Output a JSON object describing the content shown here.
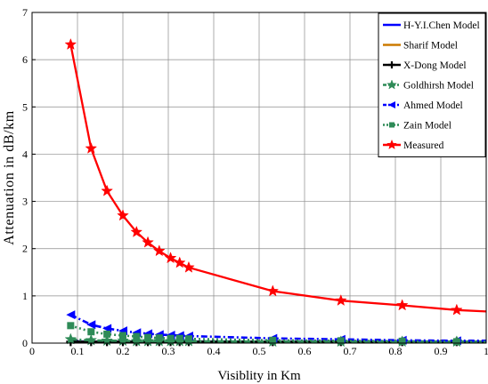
{
  "chart_data": {
    "type": "line",
    "xlabel": "Visiblity in Km",
    "ylabel": "Attenuation in dB/km",
    "xlim": [
      0,
      1
    ],
    "ylim": [
      0,
      7
    ],
    "xticks": [
      "0",
      "0.1",
      "0.2",
      "0.3",
      "0.4",
      "0.5",
      "0.6",
      "0.7",
      "0.8",
      "0.9",
      "1"
    ],
    "yticks": [
      "0",
      "1",
      "2",
      "3",
      "4",
      "5",
      "6",
      "7"
    ],
    "grid": true,
    "legend_position": "top-right",
    "series": [
      {
        "name": "H-Y.I.Chen Model",
        "color": "#0000ff",
        "line_style": "solid",
        "marker": "none",
        "x": [
          0.085,
          0.13,
          0.165,
          0.2,
          0.23,
          0.255,
          0.28,
          0.305,
          0.325,
          0.345,
          0.53,
          0.68,
          0.815,
          0.935,
          1.0
        ],
        "y": [
          0.04,
          0.03,
          0.03,
          0.03,
          0.03,
          0.03,
          0.03,
          0.03,
          0.03,
          0.03,
          0.03,
          0.03,
          0.03,
          0.03,
          0.03
        ]
      },
      {
        "name": "Sharif Model",
        "color": "#cc7a00",
        "line_style": "solid",
        "marker": "none",
        "x": [
          0.085,
          0.13,
          0.165,
          0.2,
          0.23,
          0.255,
          0.28,
          0.305,
          0.325,
          0.345,
          0.53,
          0.68,
          0.815,
          0.935,
          1.0
        ],
        "y": [
          0.02,
          0.02,
          0.02,
          0.02,
          0.02,
          0.02,
          0.02,
          0.02,
          0.02,
          0.02,
          0.02,
          0.02,
          0.02,
          0.02,
          0.02
        ]
      },
      {
        "name": "X-Dong Model",
        "color": "#000000",
        "line_style": "solid",
        "marker": "plus",
        "x": [
          0.085,
          0.13,
          0.165,
          0.2,
          0.23,
          0.255,
          0.28,
          0.305,
          0.325,
          0.345,
          0.53,
          0.68,
          0.815,
          0.935,
          1.0
        ],
        "y": [
          0.03,
          0.03,
          0.03,
          0.03,
          0.03,
          0.03,
          0.03,
          0.03,
          0.03,
          0.03,
          0.03,
          0.03,
          0.03,
          0.03,
          0.03
        ]
      },
      {
        "name": "Goldhirsh Model",
        "color": "#2e8b57",
        "line_style": "dashdot",
        "marker": "star",
        "x": [
          0.085,
          0.13,
          0.165,
          0.2,
          0.23,
          0.255,
          0.28,
          0.305,
          0.325,
          0.345,
          0.53,
          0.68,
          0.815,
          0.935,
          1.0
        ],
        "y": [
          0.08,
          0.06,
          0.05,
          0.05,
          0.04,
          0.04,
          0.04,
          0.04,
          0.04,
          0.04,
          0.03,
          0.03,
          0.03,
          0.03,
          0.03
        ]
      },
      {
        "name": "Ahmed Model",
        "color": "#0000ff",
        "line_style": "dashdot",
        "marker": "triangle-left",
        "x": [
          0.085,
          0.13,
          0.165,
          0.2,
          0.23,
          0.255,
          0.28,
          0.305,
          0.325,
          0.345,
          0.53,
          0.68,
          0.815,
          0.935,
          1.0
        ],
        "y": [
          0.6,
          0.39,
          0.31,
          0.26,
          0.22,
          0.2,
          0.18,
          0.17,
          0.16,
          0.15,
          0.1,
          0.08,
          0.06,
          0.05,
          0.05
        ]
      },
      {
        "name": "Zain Model",
        "color": "#2e8b57",
        "line_style": "dotted",
        "marker": "square",
        "x": [
          0.085,
          0.13,
          0.165,
          0.2,
          0.23,
          0.255,
          0.28,
          0.305,
          0.325,
          0.345,
          0.53,
          0.68,
          0.815,
          0.935,
          1.0
        ],
        "y": [
          0.37,
          0.24,
          0.19,
          0.16,
          0.14,
          0.12,
          0.11,
          0.1,
          0.1,
          0.09,
          0.06,
          0.05,
          0.04,
          0.03,
          0.03
        ]
      },
      {
        "name": "Measured",
        "color": "#ff0000",
        "line_style": "solid",
        "marker": "star",
        "x": [
          0.085,
          0.13,
          0.165,
          0.2,
          0.23,
          0.255,
          0.28,
          0.305,
          0.325,
          0.345,
          0.53,
          0.68,
          0.815,
          0.935,
          1.0
        ],
        "y": [
          6.32,
          4.12,
          3.22,
          2.7,
          2.35,
          2.13,
          1.95,
          1.8,
          1.7,
          1.6,
          1.1,
          0.9,
          0.8,
          0.7,
          0.67
        ]
      }
    ]
  }
}
